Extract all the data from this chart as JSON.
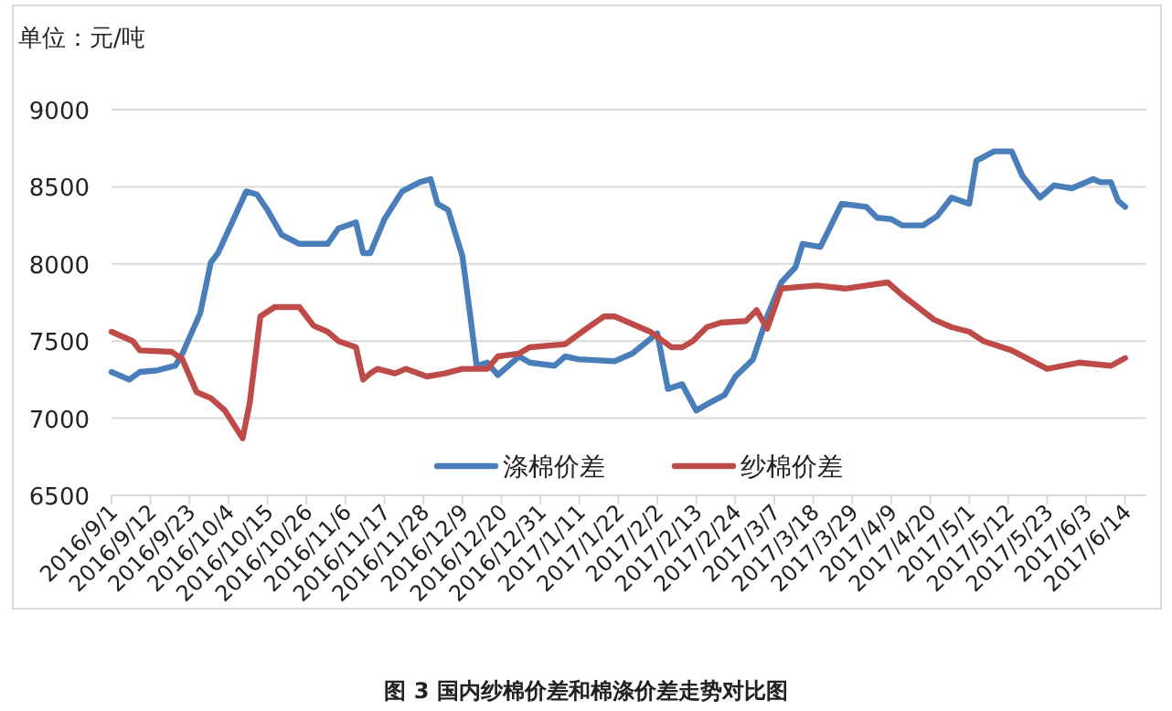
{
  "chart_data": {
    "type": "line",
    "title": "图 3 国内纱棉价差和棉涤价差走势对比图",
    "ylabel": "单位：元/吨",
    "xlim": [
      "2016-09-01",
      "2017-06-20"
    ],
    "xticks": [
      {
        "value": "2016-09-01",
        "label": "2016/9/1"
      },
      {
        "value": "2016-09-12",
        "label": "2016/9/12"
      },
      {
        "value": "2016-09-23",
        "label": "2016/9/23"
      },
      {
        "value": "2016-10-04",
        "label": "2016/10/4"
      },
      {
        "value": "2016-10-15",
        "label": "2016/10/15"
      },
      {
        "value": "2016-10-26",
        "label": "2016/10/26"
      },
      {
        "value": "2016-11-06",
        "label": "2016/11/6"
      },
      {
        "value": "2016-11-17",
        "label": "2016/11/17"
      },
      {
        "value": "2016-11-28",
        "label": "2016/11/28"
      },
      {
        "value": "2016-12-09",
        "label": "2016/12/9"
      },
      {
        "value": "2016-12-20",
        "label": "2016/12/20"
      },
      {
        "value": "2016-12-31",
        "label": "2016/12/31"
      },
      {
        "value": "2017-01-11",
        "label": "2017/1/11"
      },
      {
        "value": "2017-01-22",
        "label": "2017/1/22"
      },
      {
        "value": "2017-02-02",
        "label": "2017/2/2"
      },
      {
        "value": "2017-02-13",
        "label": "2017/2/13"
      },
      {
        "value": "2017-02-24",
        "label": "2017/2/24"
      },
      {
        "value": "2017-03-07",
        "label": "2017/3/7"
      },
      {
        "value": "2017-03-18",
        "label": "2017/3/18"
      },
      {
        "value": "2017-03-29",
        "label": "2017/3/29"
      },
      {
        "value": "2017-04-09",
        "label": "2017/4/9"
      },
      {
        "value": "2017-04-20",
        "label": "2017/4/20"
      },
      {
        "value": "2017-05-01",
        "label": "2017/5/1"
      },
      {
        "value": "2017-05-12",
        "label": "2017/5/12"
      },
      {
        "value": "2017-05-23",
        "label": "2017/5/23"
      },
      {
        "value": "2017-06-03",
        "label": "2017/6/3"
      },
      {
        "value": "2017-06-14",
        "label": "2017/6/14"
      }
    ],
    "ylim": [
      6500,
      9000
    ],
    "yticks": [
      6500,
      7000,
      7500,
      8000,
      8500,
      9000
    ],
    "grid": "y",
    "legend": "bottom",
    "series": [
      {
        "name": "涤棉价差",
        "color": "#4a7ebb",
        "x": [
          "2016-09-01",
          "2016-09-06",
          "2016-09-09",
          "2016-09-14",
          "2016-09-19",
          "2016-09-21",
          "2016-09-26",
          "2016-09-29",
          "2016-10-01",
          "2016-10-09",
          "2016-10-12",
          "2016-10-15",
          "2016-10-19",
          "2016-10-24",
          "2016-11-01",
          "2016-11-04",
          "2016-11-09",
          "2016-11-11",
          "2016-11-13",
          "2016-11-17",
          "2016-11-22",
          "2016-11-27",
          "2016-11-30",
          "2016-12-02",
          "2016-12-05",
          "2016-12-09",
          "2016-12-11",
          "2016-12-13",
          "2016-12-16",
          "2016-12-19",
          "2016-12-25",
          "2016-12-28",
          "2017-01-04",
          "2017-01-07",
          "2017-01-11",
          "2017-01-12",
          "2017-01-21",
          "2017-01-26",
          "2017-02-02",
          "2017-02-05",
          "2017-02-09",
          "2017-02-13",
          "2017-02-16",
          "2017-02-21",
          "2017-02-24",
          "2017-03-01",
          "2017-03-05",
          "2017-03-09",
          "2017-03-13",
          "2017-03-15",
          "2017-03-20",
          "2017-03-26",
          "2017-04-02",
          "2017-04-05",
          "2017-04-09",
          "2017-04-12",
          "2017-04-18",
          "2017-04-22",
          "2017-04-26",
          "2017-05-01",
          "2017-05-03",
          "2017-05-08",
          "2017-05-13",
          "2017-05-16",
          "2017-05-21",
          "2017-05-25",
          "2017-05-30",
          "2017-06-05",
          "2017-06-07",
          "2017-06-10",
          "2017-06-12",
          "2017-06-14"
        ],
        "values": [
          7300,
          7250,
          7300,
          7310,
          7340,
          7420,
          7680,
          8010,
          8070,
          8470,
          8450,
          8350,
          8190,
          8130,
          8130,
          8230,
          8270,
          8070,
          8070,
          8290,
          8470,
          8530,
          8550,
          8390,
          8350,
          8050,
          7700,
          7340,
          7360,
          7280,
          7400,
          7360,
          7340,
          7400,
          7380,
          7380,
          7370,
          7420,
          7550,
          7190,
          7220,
          7050,
          7090,
          7150,
          7270,
          7380,
          7660,
          7880,
          7980,
          8130,
          8110,
          8390,
          8370,
          8300,
          8290,
          8250,
          8250,
          8310,
          8430,
          8390,
          8670,
          8730,
          8730,
          8570,
          8430,
          8510,
          8490,
          8550,
          8530,
          8530,
          8410,
          8370
        ]
      },
      {
        "name": "纱棉价差",
        "color": "#be4b48",
        "x": [
          "2016-09-01",
          "2016-09-07",
          "2016-09-09",
          "2016-09-18",
          "2016-09-21",
          "2016-09-25",
          "2016-09-29",
          "2016-10-03",
          "2016-10-08",
          "2016-10-10",
          "2016-10-13",
          "2016-10-17",
          "2016-10-24",
          "2016-10-28",
          "2016-11-01",
          "2016-11-04",
          "2016-11-09",
          "2016-11-11",
          "2016-11-13",
          "2016-11-15",
          "2016-11-20",
          "2016-11-23",
          "2016-11-29",
          "2016-12-04",
          "2016-12-09",
          "2016-12-16",
          "2016-12-19",
          "2016-12-25",
          "2016-12-28",
          "2017-01-07",
          "2017-01-13",
          "2017-01-18",
          "2017-01-21",
          "2017-01-31",
          "2017-02-06",
          "2017-02-09",
          "2017-02-12",
          "2017-02-16",
          "2017-02-20",
          "2017-02-27",
          "2017-03-02",
          "2017-03-05",
          "2017-03-09",
          "2017-03-19",
          "2017-03-27",
          "2017-04-08",
          "2017-04-12",
          "2017-04-21",
          "2017-04-26",
          "2017-05-01",
          "2017-05-05",
          "2017-05-13",
          "2017-05-23",
          "2017-06-01",
          "2017-06-10",
          "2017-06-14"
        ],
        "values": [
          7560,
          7500,
          7440,
          7430,
          7380,
          7170,
          7130,
          7050,
          6870,
          7100,
          7660,
          7720,
          7720,
          7600,
          7560,
          7500,
          7460,
          7250,
          7290,
          7320,
          7290,
          7320,
          7270,
          7290,
          7320,
          7320,
          7400,
          7420,
          7460,
          7480,
          7580,
          7660,
          7660,
          7560,
          7460,
          7460,
          7500,
          7590,
          7620,
          7630,
          7700,
          7580,
          7840,
          7860,
          7840,
          7880,
          7800,
          7640,
          7590,
          7560,
          7500,
          7440,
          7320,
          7360,
          7340,
          7390
        ]
      }
    ]
  }
}
